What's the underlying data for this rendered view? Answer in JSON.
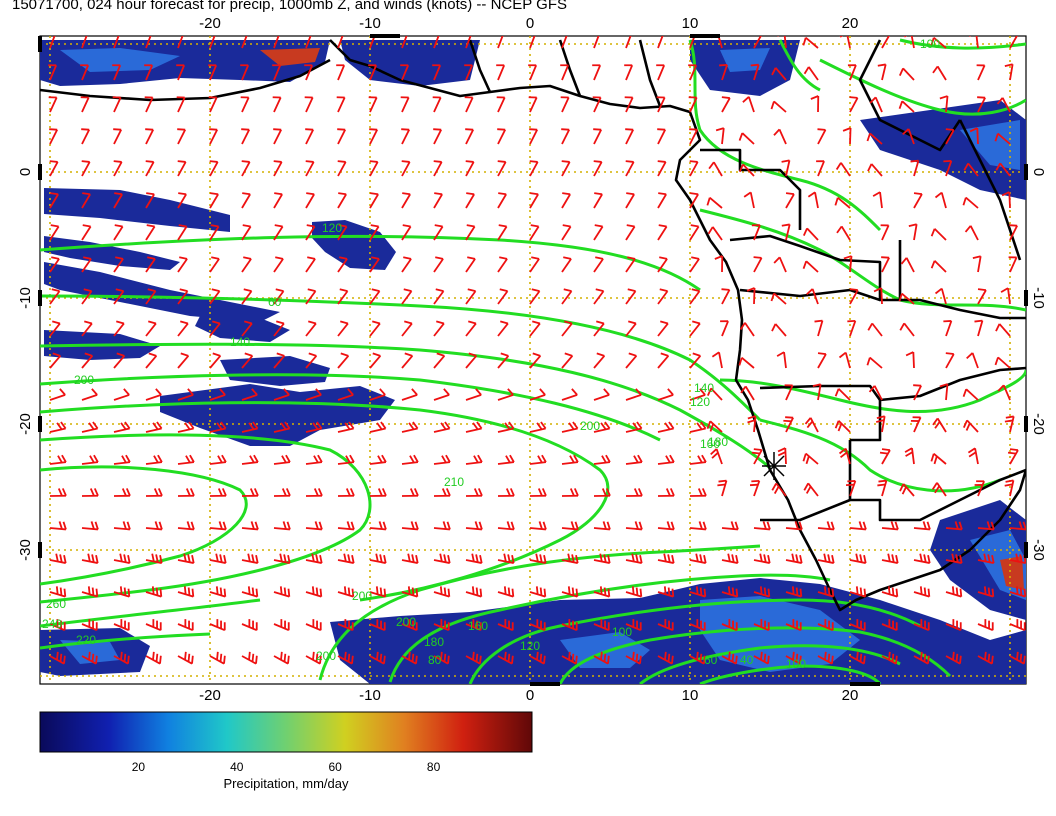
{
  "title": "15071700, 024 hour forecast for precip, 1000mb Z, and winds (knots) -- NCEP GFS",
  "map": {
    "lon_ticks": [
      "-20",
      "-10",
      "0",
      "10",
      "20"
    ],
    "lat_ticks": [
      "0",
      "-10",
      "-20",
      "-30"
    ],
    "contour_labels": [
      "100",
      "120",
      "60",
      "140",
      "200",
      "120",
      "200",
      "140",
      "160",
      "180",
      "210",
      "200",
      "200",
      "260",
      "240",
      "220",
      "200",
      "180",
      "160",
      "120",
      "100",
      "80",
      "60",
      "40",
      "100"
    ],
    "colors": {
      "contour": "#22dd22",
      "wind": "#ee1111",
      "coast": "#000000",
      "grid": "#d4b000",
      "precip_light": "#1a2a9a",
      "precip_mid": "#2a6ad8",
      "precip_high": "#c83a20"
    }
  },
  "colorbar": {
    "label": "Precipitation, mm/day",
    "ticks": [
      "20",
      "40",
      "60",
      "80"
    ],
    "range": [
      0,
      100
    ],
    "tick_values": [
      20,
      40,
      60,
      80
    ]
  }
}
